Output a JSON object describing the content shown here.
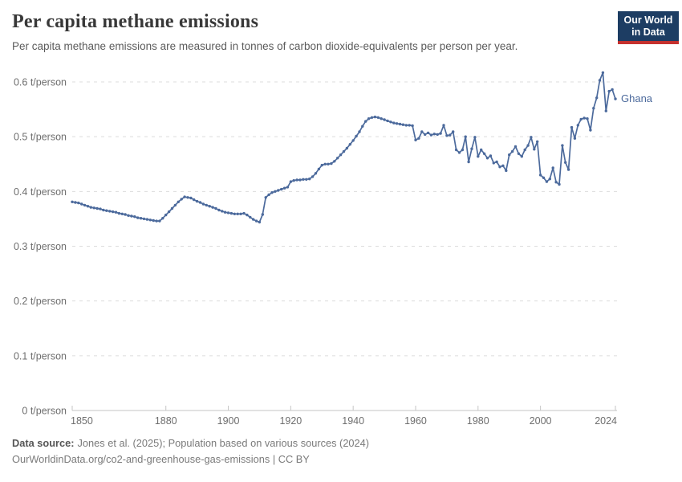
{
  "header": {
    "title": "Per capita methane emissions",
    "subtitle": "Per capita methane emissions are measured in tonnes of carbon dioxide-equivalents per person per year.",
    "logo_line1": "Our World",
    "logo_line2": "in Data"
  },
  "colors": {
    "line": "#4c6a9c",
    "grid": "#dcdcdc",
    "axis": "#c6c6c6",
    "tick_text": "#6e6e6e",
    "logo_bg": "#1d3d63",
    "logo_accent": "#c5312e"
  },
  "chart_data": {
    "type": "line",
    "title": "Per capita methane emissions",
    "ylabel": "",
    "xlabel": "",
    "unit": "t/person",
    "grid": true,
    "legend_position": "end-of-line-label",
    "xlim": [
      1850,
      2024
    ],
    "ylim": [
      0,
      0.6
    ],
    "yticks": [
      {
        "v": 0,
        "label": "0 t/person"
      },
      {
        "v": 0.1,
        "label": "0.1 t/person"
      },
      {
        "v": 0.2,
        "label": "0.2 t/person"
      },
      {
        "v": 0.3,
        "label": "0.3 t/person"
      },
      {
        "v": 0.4,
        "label": "0.4 t/person"
      },
      {
        "v": 0.5,
        "label": "0.5 t/person"
      },
      {
        "v": 0.6,
        "label": "0.6 t/person"
      }
    ],
    "xticks": [
      {
        "v": 1850,
        "label": "1850"
      },
      {
        "v": 1880,
        "label": "1880"
      },
      {
        "v": 1900,
        "label": "1900"
      },
      {
        "v": 1920,
        "label": "1920"
      },
      {
        "v": 1940,
        "label": "1940"
      },
      {
        "v": 1960,
        "label": "1960"
      },
      {
        "v": 1980,
        "label": "1980"
      },
      {
        "v": 2000,
        "label": "2000"
      },
      {
        "v": 2024,
        "label": "2024"
      }
    ],
    "series": [
      {
        "name": "Ghana",
        "color": "#4c6a9c",
        "years": [
          1850,
          1851,
          1852,
          1853,
          1854,
          1855,
          1856,
          1857,
          1858,
          1859,
          1860,
          1861,
          1862,
          1863,
          1864,
          1865,
          1866,
          1867,
          1868,
          1869,
          1870,
          1871,
          1872,
          1873,
          1874,
          1875,
          1876,
          1877,
          1878,
          1879,
          1880,
          1881,
          1882,
          1883,
          1884,
          1885,
          1886,
          1887,
          1888,
          1889,
          1890,
          1891,
          1892,
          1893,
          1894,
          1895,
          1896,
          1897,
          1898,
          1899,
          1900,
          1901,
          1902,
          1903,
          1904,
          1905,
          1906,
          1907,
          1908,
          1909,
          1910,
          1911,
          1912,
          1913,
          1914,
          1915,
          1916,
          1917,
          1918,
          1919,
          1920,
          1921,
          1922,
          1923,
          1924,
          1925,
          1926,
          1927,
          1928,
          1929,
          1930,
          1931,
          1932,
          1933,
          1934,
          1935,
          1936,
          1937,
          1938,
          1939,
          1940,
          1941,
          1942,
          1943,
          1944,
          1945,
          1946,
          1947,
          1948,
          1949,
          1950,
          1951,
          1952,
          1953,
          1954,
          1955,
          1956,
          1957,
          1958,
          1959,
          1960,
          1961,
          1962,
          1963,
          1964,
          1965,
          1966,
          1967,
          1968,
          1969,
          1970,
          1971,
          1972,
          1973,
          1974,
          1975,
          1976,
          1977,
          1978,
          1979,
          1980,
          1981,
          1982,
          1983,
          1984,
          1985,
          1986,
          1987,
          1988,
          1989,
          1990,
          1991,
          1992,
          1993,
          1994,
          1995,
          1996,
          1997,
          1998,
          1999,
          2000,
          2001,
          2002,
          2003,
          2004,
          2005,
          2006,
          2007,
          2008,
          2009,
          2010,
          2011,
          2012,
          2013,
          2014,
          2015,
          2016,
          2017,
          2018,
          2019,
          2020,
          2021,
          2022,
          2023,
          2024
        ],
        "values": [
          0.381,
          0.38,
          0.379,
          0.377,
          0.375,
          0.373,
          0.371,
          0.37,
          0.369,
          0.368,
          0.366,
          0.365,
          0.364,
          0.363,
          0.362,
          0.36,
          0.359,
          0.358,
          0.356,
          0.355,
          0.354,
          0.352,
          0.351,
          0.35,
          0.349,
          0.348,
          0.347,
          0.346,
          0.346,
          0.351,
          0.357,
          0.363,
          0.369,
          0.375,
          0.381,
          0.386,
          0.39,
          0.389,
          0.388,
          0.385,
          0.382,
          0.38,
          0.377,
          0.375,
          0.373,
          0.371,
          0.369,
          0.366,
          0.364,
          0.362,
          0.361,
          0.36,
          0.359,
          0.359,
          0.359,
          0.36,
          0.357,
          0.353,
          0.349,
          0.346,
          0.344,
          0.358,
          0.389,
          0.394,
          0.398,
          0.4,
          0.402,
          0.404,
          0.406,
          0.408,
          0.418,
          0.42,
          0.421,
          0.421,
          0.422,
          0.422,
          0.423,
          0.427,
          0.433,
          0.441,
          0.448,
          0.45,
          0.45,
          0.451,
          0.455,
          0.461,
          0.467,
          0.473,
          0.479,
          0.486,
          0.493,
          0.501,
          0.509,
          0.519,
          0.528,
          0.533,
          0.535,
          0.536,
          0.535,
          0.533,
          0.531,
          0.529,
          0.527,
          0.525,
          0.524,
          0.523,
          0.522,
          0.521,
          0.521,
          0.52,
          0.494,
          0.497,
          0.509,
          0.504,
          0.507,
          0.503,
          0.505,
          0.504,
          0.506,
          0.521,
          0.502,
          0.503,
          0.509,
          0.476,
          0.471,
          0.476,
          0.5,
          0.454,
          0.478,
          0.499,
          0.464,
          0.476,
          0.469,
          0.461,
          0.465,
          0.452,
          0.454,
          0.445,
          0.447,
          0.438,
          0.467,
          0.473,
          0.482,
          0.469,
          0.464,
          0.476,
          0.484,
          0.499,
          0.477,
          0.491,
          0.43,
          0.425,
          0.418,
          0.423,
          0.443,
          0.417,
          0.413,
          0.484,
          0.453,
          0.44,
          0.517,
          0.497,
          0.521,
          0.532,
          0.534,
          0.533,
          0.512,
          0.552,
          0.571,
          0.603,
          0.617,
          0.547,
          0.583,
          0.586,
          0.569
        ]
      }
    ]
  },
  "footer": {
    "source_label": "Data source:",
    "source_text": "Jones et al. (2025); Population based on various sources (2024)",
    "link_text": "OurWorldinData.org/co2-and-greenhouse-gas-emissions | CC BY"
  }
}
